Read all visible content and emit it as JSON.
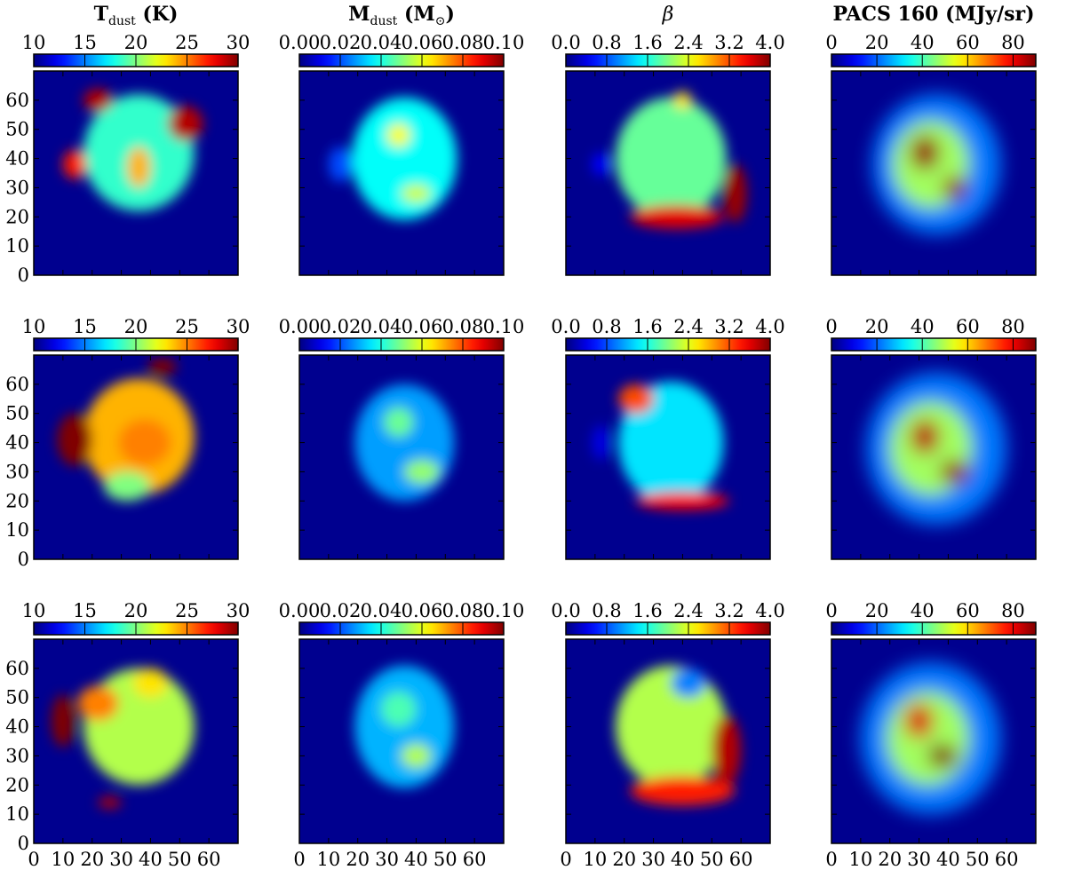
{
  "chart_data": {
    "type": "heatmap",
    "layout": {
      "rows": 3,
      "cols": 4
    },
    "axis_ticks": {
      "x": [
        "0",
        "10",
        "20",
        "30",
        "40",
        "50",
        "60"
      ],
      "y": [
        "0",
        "10",
        "20",
        "30",
        "40",
        "50",
        "60"
      ],
      "xlim": [
        0,
        70
      ],
      "ylim": [
        0,
        70
      ]
    },
    "colormap": "jet",
    "panel_background_color": "#00008f",
    "columns": [
      {
        "quantity": "T_dust",
        "title_main": "T",
        "title_sub": "dust",
        "title_rest": " (K)",
        "title_bold": true,
        "colorbar_ticks": [
          "10",
          "15",
          "20",
          "25",
          "30"
        ],
        "colorbar_range": [
          10,
          30
        ],
        "maps": [
          {
            "blobs": [
              {
                "x": 36,
                "y": 42,
                "rx": 19,
                "ry": 20,
                "value": 18.5
              },
              {
                "x": 14,
                "y": 38,
                "rx": 4,
                "ry": 5,
                "value": 27
              },
              {
                "x": 36,
                "y": 37,
                "rx": 4,
                "ry": 7,
                "value": 24
              },
              {
                "x": 52,
                "y": 52,
                "rx": 6,
                "ry": 6,
                "value": 29
              },
              {
                "x": 22,
                "y": 60,
                "rx": 5,
                "ry": 4,
                "value": 29
              }
            ]
          },
          {
            "blobs": [
              {
                "x": 36,
                "y": 42,
                "rx": 19,
                "ry": 20,
                "value": 24
              },
              {
                "x": 14,
                "y": 41,
                "rx": 6,
                "ry": 9,
                "value": 30
              },
              {
                "x": 38,
                "y": 40,
                "rx": 9,
                "ry": 8,
                "value": 25
              },
              {
                "x": 32,
                "y": 25,
                "rx": 8,
                "ry": 5,
                "value": 20
              },
              {
                "x": 44,
                "y": 66,
                "rx": 5,
                "ry": 3,
                "value": 30
              }
            ]
          },
          {
            "blobs": [
              {
                "x": 36,
                "y": 40,
                "rx": 19,
                "ry": 20,
                "value": 21
              },
              {
                "x": 10,
                "y": 42,
                "rx": 4,
                "ry": 9,
                "value": 30
              },
              {
                "x": 22,
                "y": 48,
                "rx": 7,
                "ry": 6,
                "value": 25
              },
              {
                "x": 40,
                "y": 55,
                "rx": 6,
                "ry": 5,
                "value": 23
              },
              {
                "x": 26,
                "y": 14,
                "rx": 4,
                "ry": 2,
                "value": 29
              }
            ]
          }
        ]
      },
      {
        "quantity": "M_dust",
        "title_main": "M",
        "title_sub": "dust",
        "title_rest": " (M",
        "title_symbol": "⊙",
        "title_end": ")",
        "title_bold": true,
        "colorbar_ticks": [
          "0.00",
          "0.02",
          "0.04",
          "0.06",
          "0.08",
          "0.10"
        ],
        "colorbar_range": [
          0,
          0.1
        ],
        "maps": [
          {
            "blobs": [
              {
                "x": 36,
                "y": 40,
                "rx": 18,
                "ry": 21,
                "value": 0.038
              },
              {
                "x": 34,
                "y": 48,
                "rx": 4,
                "ry": 4,
                "value": 0.062
              },
              {
                "x": 40,
                "y": 28,
                "rx": 5,
                "ry": 3,
                "value": 0.058
              },
              {
                "x": 14,
                "y": 38,
                "rx": 4,
                "ry": 6,
                "value": 0.02
              }
            ]
          },
          {
            "blobs": [
              {
                "x": 36,
                "y": 40,
                "rx": 17,
                "ry": 20,
                "value": 0.028
              },
              {
                "x": 34,
                "y": 47,
                "rx": 5,
                "ry": 5,
                "value": 0.048
              },
              {
                "x": 42,
                "y": 30,
                "rx": 6,
                "ry": 4,
                "value": 0.052
              }
            ]
          },
          {
            "blobs": [
              {
                "x": 36,
                "y": 40,
                "rx": 17,
                "ry": 21,
                "value": 0.03
              },
              {
                "x": 34,
                "y": 46,
                "rx": 6,
                "ry": 6,
                "value": 0.045
              },
              {
                "x": 40,
                "y": 30,
                "rx": 5,
                "ry": 4,
                "value": 0.055
              }
            ]
          }
        ]
      },
      {
        "quantity": "beta",
        "title_main": "β",
        "title_bold": false,
        "colorbar_ticks": [
          "0.0",
          "0.8",
          "1.6",
          "2.4",
          "3.2",
          "4.0"
        ],
        "colorbar_range": [
          0,
          4
        ],
        "maps": [
          {
            "blobs": [
              {
                "x": 36,
                "y": 40,
                "rx": 19,
                "ry": 21,
                "value": 1.9
              },
              {
                "x": 12,
                "y": 38,
                "rx": 3,
                "ry": 4,
                "value": 0.5
              },
              {
                "x": 38,
                "y": 20,
                "rx": 16,
                "ry": 4,
                "value": 3.6
              },
              {
                "x": 58,
                "y": 28,
                "rx": 4,
                "ry": 10,
                "value": 3.9
              },
              {
                "x": 40,
                "y": 60,
                "rx": 3,
                "ry": 3,
                "value": 2.6
              }
            ]
          },
          {
            "blobs": [
              {
                "x": 36,
                "y": 40,
                "rx": 18,
                "ry": 21,
                "value": 1.4
              },
              {
                "x": 12,
                "y": 40,
                "rx": 3,
                "ry": 6,
                "value": 0.4
              },
              {
                "x": 40,
                "y": 20,
                "rx": 16,
                "ry": 3,
                "value": 3.5
              },
              {
                "x": 24,
                "y": 55,
                "rx": 6,
                "ry": 5,
                "value": 3.2
              }
            ]
          },
          {
            "blobs": [
              {
                "x": 36,
                "y": 40,
                "rx": 19,
                "ry": 21,
                "value": 2.2
              },
              {
                "x": 40,
                "y": 18,
                "rx": 18,
                "ry": 5,
                "value": 3.4
              },
              {
                "x": 55,
                "y": 32,
                "rx": 5,
                "ry": 12,
                "value": 3.8
              },
              {
                "x": 42,
                "y": 55,
                "rx": 6,
                "ry": 5,
                "value": 1.0
              }
            ]
          }
        ]
      },
      {
        "quantity": "PACS 160",
        "title_main": "PACS 160 (MJy/sr)",
        "title_bold": true,
        "colorbar_ticks": [
          "0",
          "20",
          "40",
          "60",
          "80"
        ],
        "colorbar_range": [
          0,
          90
        ],
        "maps": [
          {
            "blobs": [
              {
                "x": 36,
                "y": 38,
                "rx": 22,
                "ry": 24,
                "value": 22
              },
              {
                "x": 34,
                "y": 38,
                "rx": 13,
                "ry": 15,
                "value": 48
              },
              {
                "x": 32,
                "y": 42,
                "rx": 5,
                "ry": 6,
                "value": 88
              },
              {
                "x": 42,
                "y": 30,
                "rx": 4,
                "ry": 4,
                "value": 88
              }
            ]
          },
          {
            "blobs": [
              {
                "x": 36,
                "y": 38,
                "rx": 24,
                "ry": 26,
                "value": 22
              },
              {
                "x": 34,
                "y": 38,
                "rx": 14,
                "ry": 16,
                "value": 48
              },
              {
                "x": 32,
                "y": 42,
                "rx": 5,
                "ry": 6,
                "value": 85
              },
              {
                "x": 42,
                "y": 30,
                "rx": 5,
                "ry": 4,
                "value": 88
              }
            ]
          },
          {
            "blobs": [
              {
                "x": 34,
                "y": 36,
                "rx": 24,
                "ry": 26,
                "value": 22
              },
              {
                "x": 33,
                "y": 36,
                "rx": 14,
                "ry": 16,
                "value": 48
              },
              {
                "x": 30,
                "y": 42,
                "rx": 5,
                "ry": 6,
                "value": 82
              },
              {
                "x": 38,
                "y": 30,
                "rx": 5,
                "ry": 4,
                "value": 92
              }
            ]
          }
        ]
      }
    ]
  }
}
